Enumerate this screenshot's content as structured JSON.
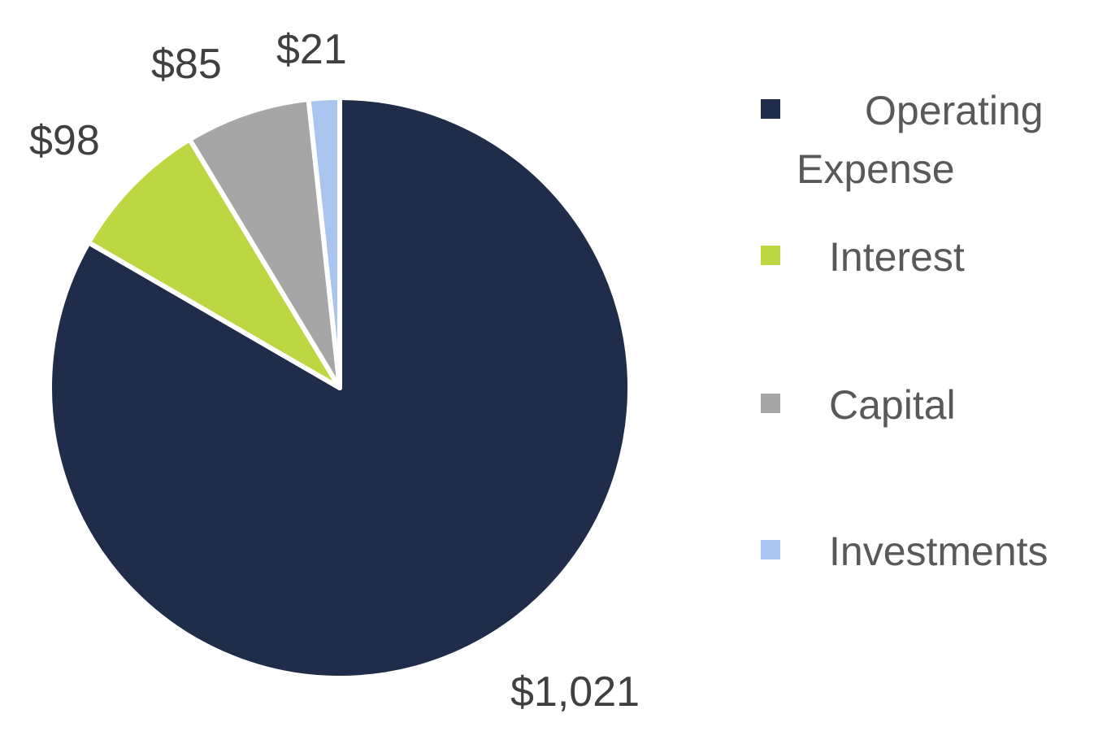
{
  "chart_data": {
    "type": "pie",
    "slices": [
      {
        "name": "Operating Expense",
        "value": 1021,
        "label": "$1,021",
        "color": "#1f2d4a"
      },
      {
        "name": "Interest",
        "value": 98,
        "label": "$98",
        "color": "#bdd743"
      },
      {
        "name": "Capital",
        "value": 85,
        "label": "$85",
        "color": "#a6a6a6"
      },
      {
        "name": "Investments",
        "value": 21,
        "label": "$21",
        "color": "#a9c4ef"
      }
    ],
    "legend": {
      "placement": "right",
      "items": [
        "Operating Expense",
        "Interest",
        "Capital",
        "Investments"
      ]
    }
  }
}
